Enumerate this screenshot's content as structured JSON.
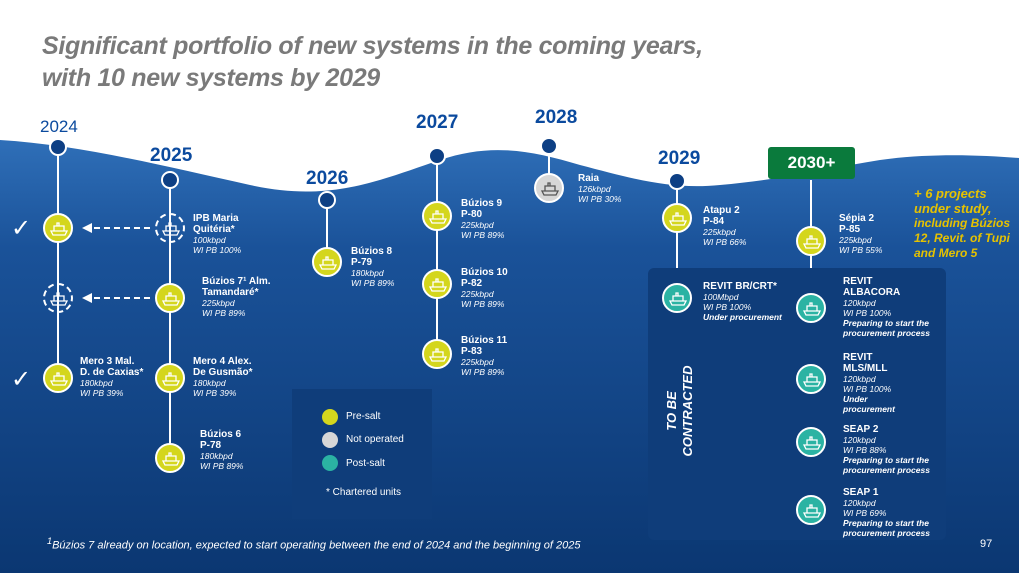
{
  "title_line1": "Significant portfolio of new systems in the coming years,",
  "title_line2": "with 10 new systems by 2029",
  "years": {
    "y2024": "2024",
    "y2025": "2025",
    "y2026": "2026",
    "y2027": "2027",
    "y2028": "2028",
    "y2029": "2029",
    "y2030": "2030+"
  },
  "colors": {
    "pre_salt": "#d4d61d",
    "not_operated": "#d7d7d7",
    "post_salt": "#2bb3a3",
    "navy": "#0d3f84",
    "badge": "#0a7a3c",
    "accent": "#e6c200"
  },
  "units": {
    "ipb": {
      "name1": "IPB Maria",
      "name2": "Quitéria*",
      "cap": "100kbpd",
      "wi": "WI PB 100%"
    },
    "buz7": {
      "name1": "Búzios 7¹ Alm.",
      "name2": "Tamandaré*",
      "cap": "225kbpd",
      "wi": "WI PB 89%"
    },
    "mero3": {
      "name1": "Mero 3 Mal.",
      "name2": "D. de Caxias*",
      "cap": "180kbpd",
      "wi": "WI PB 39%"
    },
    "mero4": {
      "name1": "Mero 4 Alex.",
      "name2": "De Gusmão*",
      "cap": "180kbpd",
      "wi": "WI PB 39%"
    },
    "buz6": {
      "name1": "Búzios 6",
      "name2": "P-78",
      "cap": "180kbpd",
      "wi": "WI PB 89%"
    },
    "buz8": {
      "name1": "Búzios 8",
      "name2": "P-79",
      "cap": "180kbpd",
      "wi": "WI PB 89%"
    },
    "buz9": {
      "name1": "Búzios 9",
      "name2": "P-80",
      "cap": "225kbpd",
      "wi": "WI PB 89%"
    },
    "buz10": {
      "name1": "Búzios 10",
      "name2": "P-82",
      "cap": "225kbpd",
      "wi": "WI PB 89%"
    },
    "buz11": {
      "name1": "Búzios 11",
      "name2": "P-83",
      "cap": "225kbpd",
      "wi": "WI PB 89%"
    },
    "raia": {
      "name1": "Raia",
      "cap": "126kbpd",
      "wi": "WI PB 30%"
    },
    "atapu": {
      "name1": "Atapu 2",
      "name2": "P-84",
      "cap": "225kbpd",
      "wi": "WI PB 66%"
    },
    "revit_br": {
      "name1": "REVIT BR/CRT*",
      "cap": "100Mbpd",
      "wi": "WI PB 100%",
      "status": "Under procurement"
    },
    "sepia": {
      "name1": "Sépia 2",
      "name2": "P-85",
      "cap": "225kbpd",
      "wi": "WI PB 55%"
    },
    "revit_alb": {
      "name1": "REVIT",
      "name2": "ALBACORA",
      "cap": "120kbpd",
      "wi": "WI PB 100%",
      "status1": "Preparing to start the",
      "status2": "procurement process"
    },
    "revit_mls": {
      "name1": "REVIT",
      "name2": "MLS/MLL",
      "cap": "120kbpd",
      "wi": "WI PB 100%",
      "status1": "Under",
      "status2": "procurement"
    },
    "seap2": {
      "name1": "SEAP 2",
      "cap": "120kbpd",
      "wi": "WI PB 88%",
      "status1": "Preparing to start the",
      "status2": "procurement process"
    },
    "seap1": {
      "name1": "SEAP 1",
      "cap": "120kbpd",
      "wi": "WI PB 69%",
      "status1": "Preparing to start the",
      "status2": "procurement process"
    }
  },
  "legend": {
    "pre_salt": "Pre-salt",
    "not_operated": "Not operated",
    "post_salt": "Post-salt",
    "chartered": "* Chartered units"
  },
  "to_be_contracted": "TO BE CONTRACTED",
  "studies": {
    "line1": "+ 6 projects",
    "line2": "under study,",
    "line3": "including Búzios",
    "line4": "12, Revit. of Tupi",
    "line5": "and Mero 5"
  },
  "footnote_sup": "1",
  "footnote": "Búzios 7 already on location, expected to start operating between the end of 2024 and the beginning of 2025",
  "page_number": "97"
}
